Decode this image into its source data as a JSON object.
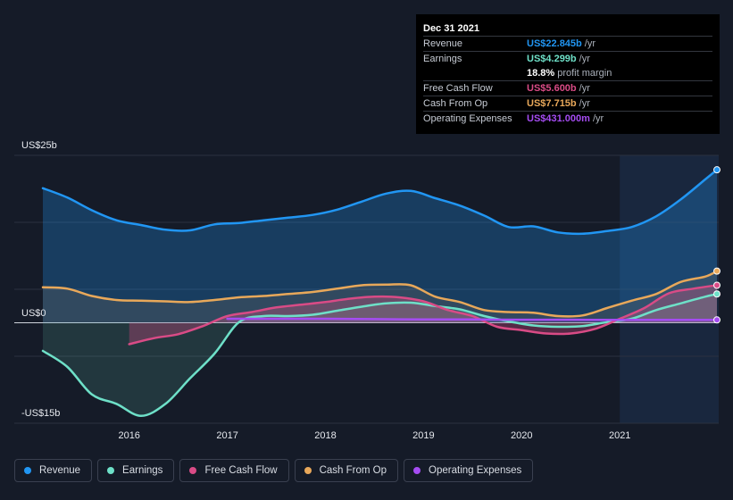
{
  "chart_data": {
    "type": "area",
    "y_label_top": "US$25b",
    "y_label_zero": "US$0",
    "y_label_bottom": "-US$15b",
    "ylim": [
      -15,
      25
    ],
    "xlim": [
      2015.12,
      2021.99
    ],
    "highlight_start": 2021.0,
    "x_ticks": [
      {
        "value": 2016,
        "label": "2016"
      },
      {
        "value": 2017,
        "label": "2017"
      },
      {
        "value": 2018,
        "label": "2018"
      },
      {
        "value": 2019,
        "label": "2019"
      },
      {
        "value": 2020,
        "label": "2020"
      },
      {
        "value": 2021,
        "label": "2021"
      }
    ],
    "series": [
      {
        "name": "Revenue",
        "color": "#2196f3",
        "x": [
          2015.12,
          2015.37,
          2015.62,
          2015.87,
          2016.12,
          2016.37,
          2016.62,
          2016.87,
          2017.12,
          2017.37,
          2017.62,
          2017.87,
          2018.12,
          2018.37,
          2018.62,
          2018.87,
          2019.12,
          2019.37,
          2019.62,
          2019.87,
          2020.12,
          2020.37,
          2020.62,
          2020.87,
          2021.12,
          2021.37,
          2021.62,
          2021.87,
          2021.99
        ],
        "values": [
          20.1,
          18.7,
          16.8,
          15.3,
          14.6,
          13.9,
          13.8,
          14.7,
          14.9,
          15.3,
          15.7,
          16.1,
          16.9,
          18.1,
          19.3,
          19.7,
          18.6,
          17.5,
          16.0,
          14.3,
          14.4,
          13.5,
          13.3,
          13.7,
          14.3,
          15.9,
          18.4,
          21.4,
          22.845
        ]
      },
      {
        "name": "Earnings",
        "color": "#6ee0c8",
        "x": [
          2015.12,
          2015.37,
          2015.62,
          2015.87,
          2016.12,
          2016.37,
          2016.62,
          2016.87,
          2017.12,
          2017.37,
          2017.62,
          2017.87,
          2018.12,
          2018.37,
          2018.62,
          2018.87,
          2019.12,
          2019.37,
          2019.62,
          2019.87,
          2020.12,
          2020.37,
          2020.62,
          2020.87,
          2021.12,
          2021.37,
          2021.62,
          2021.87,
          2021.99
        ],
        "values": [
          -4.2,
          -6.6,
          -10.7,
          -12.1,
          -13.9,
          -12.1,
          -8.3,
          -4.6,
          0.1,
          1.0,
          1.0,
          1.2,
          1.8,
          2.4,
          2.9,
          3.0,
          2.5,
          2.0,
          1.0,
          0.2,
          -0.4,
          -0.6,
          -0.5,
          0.1,
          0.6,
          1.9,
          2.9,
          3.9,
          4.299
        ]
      },
      {
        "name": "Free Cash Flow",
        "color": "#d94b86",
        "x": [
          2016.0,
          2016.25,
          2016.5,
          2016.75,
          2017.0,
          2017.25,
          2017.5,
          2017.75,
          2018.0,
          2018.25,
          2018.5,
          2018.75,
          2019.0,
          2019.25,
          2019.5,
          2019.75,
          2020.0,
          2020.25,
          2020.5,
          2020.75,
          2021.0,
          2021.25,
          2021.5,
          2021.75,
          2021.99
        ],
        "values": [
          -3.2,
          -2.3,
          -1.7,
          -0.5,
          1.0,
          1.6,
          2.3,
          2.7,
          3.1,
          3.6,
          3.9,
          3.8,
          3.2,
          1.9,
          1.0,
          -0.6,
          -1.1,
          -1.6,
          -1.6,
          -0.9,
          0.6,
          2.2,
          4.4,
          5.1,
          5.6
        ]
      },
      {
        "name": "Cash From Op",
        "color": "#e8a85a",
        "x": [
          2015.12,
          2015.37,
          2015.62,
          2015.87,
          2016.12,
          2016.37,
          2016.62,
          2016.87,
          2017.12,
          2017.37,
          2017.62,
          2017.87,
          2018.12,
          2018.37,
          2018.62,
          2018.87,
          2019.12,
          2019.37,
          2019.62,
          2019.87,
          2020.12,
          2020.37,
          2020.62,
          2020.87,
          2021.12,
          2021.37,
          2021.62,
          2021.87,
          2021.99
        ],
        "values": [
          5.3,
          5.1,
          4.0,
          3.4,
          3.3,
          3.2,
          3.1,
          3.4,
          3.8,
          4.0,
          4.3,
          4.6,
          5.1,
          5.6,
          5.7,
          5.6,
          3.9,
          3.1,
          1.9,
          1.6,
          1.5,
          1.0,
          1.1,
          2.2,
          3.3,
          4.3,
          6.1,
          6.9,
          7.715
        ]
      },
      {
        "name": "Operating Expenses",
        "color": "#a54cf2",
        "x": [
          2017.0,
          2017.5,
          2018.0,
          2018.5,
          2019.0,
          2019.5,
          2020.0,
          2020.5,
          2021.0,
          2021.5,
          2021.99
        ],
        "values": [
          0.6,
          0.6,
          0.6,
          0.55,
          0.5,
          0.5,
          0.45,
          0.45,
          0.43,
          0.43,
          0.431
        ]
      }
    ]
  },
  "tooltip": {
    "date": "Dec 31 2021",
    "rows": [
      {
        "label": "Revenue",
        "value": "US$22.845b",
        "unit": "/yr",
        "color": "#2196f3"
      },
      {
        "label": "Earnings",
        "value": "US$4.299b",
        "unit": "/yr",
        "color": "#6ee0c8"
      },
      {
        "label": "Free Cash Flow",
        "value": "US$5.600b",
        "unit": "/yr",
        "color": "#d94b86"
      },
      {
        "label": "Cash From Op",
        "value": "US$7.715b",
        "unit": "/yr",
        "color": "#e8a85a"
      },
      {
        "label": "Operating Expenses",
        "value": "US$431.000m",
        "unit": "/yr",
        "color": "#a54cf2"
      }
    ],
    "margin_value": "18.8%",
    "margin_text": "profit margin"
  },
  "legend": [
    {
      "label": "Revenue",
      "color": "#2196f3"
    },
    {
      "label": "Earnings",
      "color": "#6ee0c8"
    },
    {
      "label": "Free Cash Flow",
      "color": "#d94b86"
    },
    {
      "label": "Cash From Op",
      "color": "#e8a85a"
    },
    {
      "label": "Operating Expenses",
      "color": "#a54cf2"
    }
  ]
}
